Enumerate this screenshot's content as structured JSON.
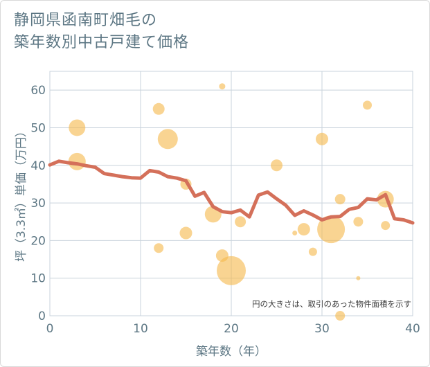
{
  "page": {
    "title_line1": "静岡県函南町畑毛の",
    "title_line2": "築年数別中古戸建て価格"
  },
  "colors": {
    "bubble": "#f5b94f",
    "line": "#d4705a",
    "grid": "#c9d3dc",
    "text": "#5d7784"
  },
  "chart_data": {
    "type": "scatter",
    "title": "静岡県函南町畑毛の築年数別中古戸建て価格",
    "xlabel": "築年数（年）",
    "ylabel": "坪（3.3㎡）単価（万円）",
    "xlim": [
      0,
      40
    ],
    "ylim": [
      0,
      65
    ],
    "xticks": [
      0,
      10,
      20,
      30,
      40
    ],
    "yticks": [
      0,
      10,
      20,
      30,
      40,
      50,
      60
    ],
    "grid": true,
    "note": "円の大きさは、取引のあった物件面積を示す",
    "bubbles": [
      {
        "x": 3,
        "y": 50,
        "size": 12
      },
      {
        "x": 3,
        "y": 41,
        "size": 12.5
      },
      {
        "x": 12,
        "y": 55,
        "size": 8.5
      },
      {
        "x": 12,
        "y": 18,
        "size": 7
      },
      {
        "x": 13,
        "y": 47,
        "size": 14.5
      },
      {
        "x": 15,
        "y": 35,
        "size": 8
      },
      {
        "x": 15,
        "y": 22,
        "size": 9
      },
      {
        "x": 18,
        "y": 27,
        "size": 12
      },
      {
        "x": 19,
        "y": 61,
        "size": 4.5
      },
      {
        "x": 19,
        "y": 16,
        "size": 9
      },
      {
        "x": 20,
        "y": 12,
        "size": 21
      },
      {
        "x": 21,
        "y": 25,
        "size": 8
      },
      {
        "x": 25,
        "y": 40,
        "size": 8.5
      },
      {
        "x": 27,
        "y": 22,
        "size": 3.5
      },
      {
        "x": 28,
        "y": 23,
        "size": 9
      },
      {
        "x": 29,
        "y": 17,
        "size": 6
      },
      {
        "x": 30,
        "y": 47,
        "size": 9
      },
      {
        "x": 31,
        "y": 23,
        "size": 20
      },
      {
        "x": 32,
        "y": 31,
        "size": 7.5
      },
      {
        "x": 32,
        "y": 0,
        "size": 7
      },
      {
        "x": 34,
        "y": 25,
        "size": 7
      },
      {
        "x": 34,
        "y": 10,
        "size": 3
      },
      {
        "x": 35,
        "y": 56,
        "size": 6.5
      },
      {
        "x": 37,
        "y": 31,
        "size": 12
      },
      {
        "x": 37,
        "y": 24,
        "size": 6.5
      }
    ],
    "line": {
      "x": [
        0,
        1,
        2,
        3,
        4,
        5,
        6,
        7,
        8,
        9,
        10,
        11,
        12,
        13,
        14,
        15,
        16,
        17,
        18,
        19,
        20,
        21,
        22,
        23,
        24,
        25,
        26,
        27,
        28,
        29,
        30,
        31,
        32,
        33,
        34,
        35,
        36,
        37,
        38,
        39,
        40
      ],
      "y": [
        40.1,
        41.1,
        40.7,
        40.4,
        39.9,
        39.5,
        37.8,
        37.4,
        37.0,
        36.7,
        36.6,
        38.6,
        38.2,
        37.0,
        36.6,
        35.9,
        31.8,
        32.8,
        29.0,
        27.7,
        27.4,
        28.1,
        26.3,
        32.1,
        32.9,
        31.1,
        29.4,
        26.7,
        27.9,
        26.8,
        25.5,
        26.3,
        26.4,
        28.3,
        28.8,
        31.1,
        30.8,
        32.2,
        25.8,
        25.5,
        24.7
      ]
    }
  }
}
